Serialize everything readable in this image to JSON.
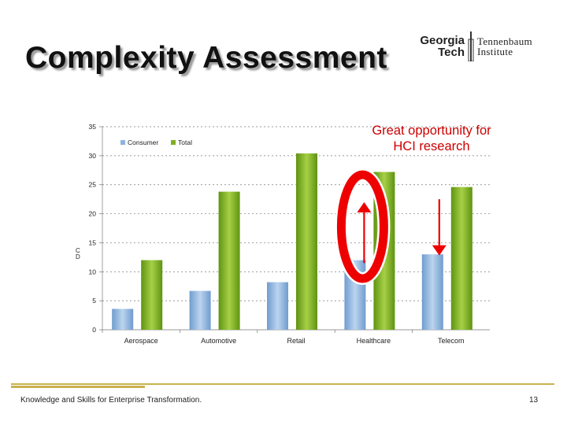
{
  "slide": {
    "title": "Complexity Assessment",
    "logo_left_line1": "Georgia",
    "logo_left_line2": "Tech",
    "logo_right_line1": "Tennenbaum",
    "logo_right_line2": "Institute",
    "callout_line1": "Great opportunity for",
    "callout_line2": "HCI research",
    "footer_text": "Knowledge and Skills for Enterprise Transformation.",
    "page_number": "13"
  },
  "chart_data": {
    "type": "bar",
    "title": "",
    "xlabel": "",
    "ylabel": "C\nD",
    "categories": [
      "Aerospace",
      "Automotive",
      "Retail",
      "Healthcare",
      "Telecom"
    ],
    "series": [
      {
        "name": "Consumer",
        "values": [
          3.6,
          6.7,
          8.2,
          12.0,
          13.0
        ],
        "color": "#8fb4dc"
      },
      {
        "name": "Total",
        "values": [
          12.0,
          23.8,
          30.4,
          27.2,
          24.6
        ],
        "color": "#7fb021"
      }
    ],
    "ylim": [
      0,
      35
    ],
    "yticks": [
      0,
      5,
      10,
      15,
      20,
      25,
      30,
      35
    ],
    "grid": true,
    "legend_position": "top-left",
    "annotation_color": "#ee0000",
    "annotations": [
      {
        "type": "ring",
        "category": "Healthcare"
      },
      {
        "type": "arrow-up",
        "category": "Healthcare",
        "from": 11.5,
        "to": 22
      },
      {
        "type": "arrow-down",
        "category": "Telecom",
        "from": 22.5,
        "to": 12.8
      }
    ]
  }
}
